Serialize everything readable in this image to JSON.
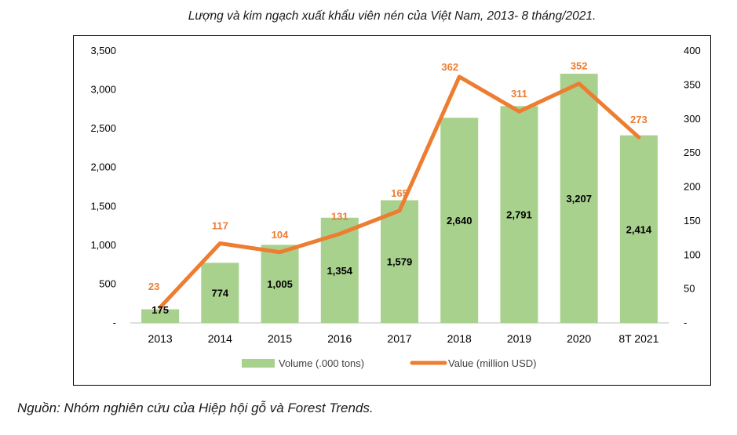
{
  "caption": "Lượng và kim ngạch xuất khẩu viên nén của Việt Nam, 2013- 8 tháng/2021.",
  "source": "Nguồn: Nhóm nghiên cứu của Hiệp hội gỗ và Forest Trends.",
  "chart_data": {
    "type": "bar",
    "categories": [
      "2013",
      "2014",
      "2015",
      "2016",
      "2017",
      "2018",
      "2019",
      "2020",
      "8T 2021"
    ],
    "series": [
      {
        "name": "Volume (.000 tons)",
        "type": "bar",
        "axis": "left",
        "color": "#a9d18e",
        "values": [
          175,
          774,
          1005,
          1354,
          1579,
          2640,
          2791,
          3207,
          2414
        ],
        "labels": [
          "175",
          "774",
          "1,005",
          "1,354",
          "1,579",
          "2,640",
          "2,791",
          "3,207",
          "2,414"
        ]
      },
      {
        "name": "Value (million USD)",
        "type": "line",
        "axis": "right",
        "color": "#ed7d31",
        "values": [
          23,
          117,
          104,
          131,
          165,
          362,
          311,
          352,
          273
        ],
        "labels": [
          "23",
          "117",
          "104",
          "131",
          "165",
          "362",
          "311",
          "352",
          "273"
        ]
      }
    ],
    "y_left": {
      "min": 0,
      "max": 3500,
      "ticks": [
        0,
        500,
        1000,
        1500,
        2000,
        2500,
        3000,
        3500
      ],
      "tick_labels": [
        "-",
        "500",
        "1,000",
        "1,500",
        "2,000",
        "2,500",
        "3,000",
        "3,500"
      ]
    },
    "y_right": {
      "min": 0,
      "max": 400,
      "ticks": [
        0,
        50,
        100,
        150,
        200,
        250,
        300,
        350,
        400
      ],
      "tick_labels": [
        "-",
        "50",
        "100",
        "150",
        "200",
        "250",
        "300",
        "350",
        "400"
      ]
    },
    "grid": false,
    "legend_position": "bottom"
  }
}
